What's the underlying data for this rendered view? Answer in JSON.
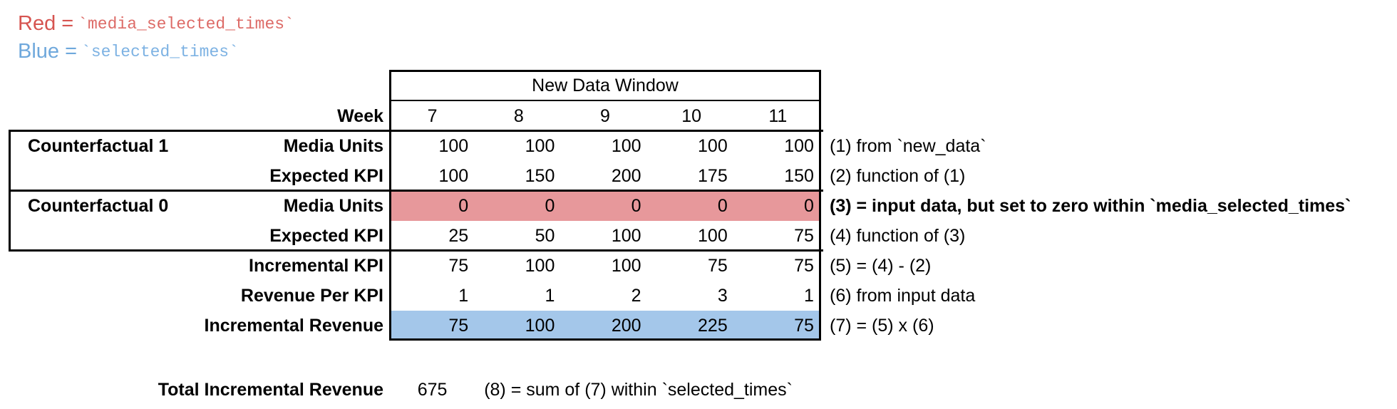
{
  "colors": {
    "red_text": "#d65450",
    "red_code": "#dd6b67",
    "blue_text": "#6fa8dc",
    "blue_code": "#7db2e3",
    "red_fill": "#e7989b",
    "blue_fill": "#a4c7ea",
    "border": "#000000"
  },
  "legend": {
    "red": {
      "label": "Red",
      "equals": "=",
      "code": "`media_selected_times`"
    },
    "blue": {
      "label": "Blue",
      "equals": "=",
      "code": "`selected_times`"
    }
  },
  "table": {
    "window_title": "New Data Window",
    "week_label": "Week",
    "weeks": [
      "7",
      "8",
      "9",
      "10",
      "11"
    ],
    "rows": [
      {
        "group": "Counterfactual 1",
        "label": "Media Units",
        "values": [
          "100",
          "100",
          "100",
          "100",
          "100"
        ],
        "annotation": "(1) from `new_data`",
        "highlight": "none",
        "bold_annotation": false
      },
      {
        "group": "",
        "label": "Expected KPI",
        "values": [
          "100",
          "150",
          "200",
          "175",
          "150"
        ],
        "annotation": "(2) function of (1)",
        "highlight": "none",
        "bold_annotation": false
      },
      {
        "group": "Counterfactual 0",
        "label": "Media Units",
        "values": [
          "0",
          "0",
          "0",
          "0",
          "0"
        ],
        "annotation": "(3) = input data, but set to zero within `media_selected_times`",
        "highlight": "red",
        "bold_annotation": true
      },
      {
        "group": "",
        "label": "Expected KPI",
        "values": [
          "25",
          "50",
          "100",
          "100",
          "75"
        ],
        "annotation": "(4) function of (3)",
        "highlight": "none",
        "bold_annotation": false
      },
      {
        "group": "",
        "label": "Incremental KPI",
        "values": [
          "75",
          "100",
          "100",
          "75",
          "75"
        ],
        "annotation": "(5) = (4) - (2)",
        "highlight": "none",
        "bold_annotation": false
      },
      {
        "group": "",
        "label": "Revenue Per KPI",
        "values": [
          "1",
          "1",
          "2",
          "3",
          "1"
        ],
        "annotation": "(6) from input data",
        "highlight": "none",
        "bold_annotation": false
      },
      {
        "group": "",
        "label": "Incremental Revenue",
        "values": [
          "75",
          "100",
          "200",
          "225",
          "75"
        ],
        "annotation": "(7) = (5) x (6)",
        "highlight": "blue",
        "bold_annotation": false
      }
    ]
  },
  "total": {
    "label": "Total Incremental Revenue",
    "value": "675",
    "annotation": "(8) = sum of (7) within `selected_times`"
  }
}
